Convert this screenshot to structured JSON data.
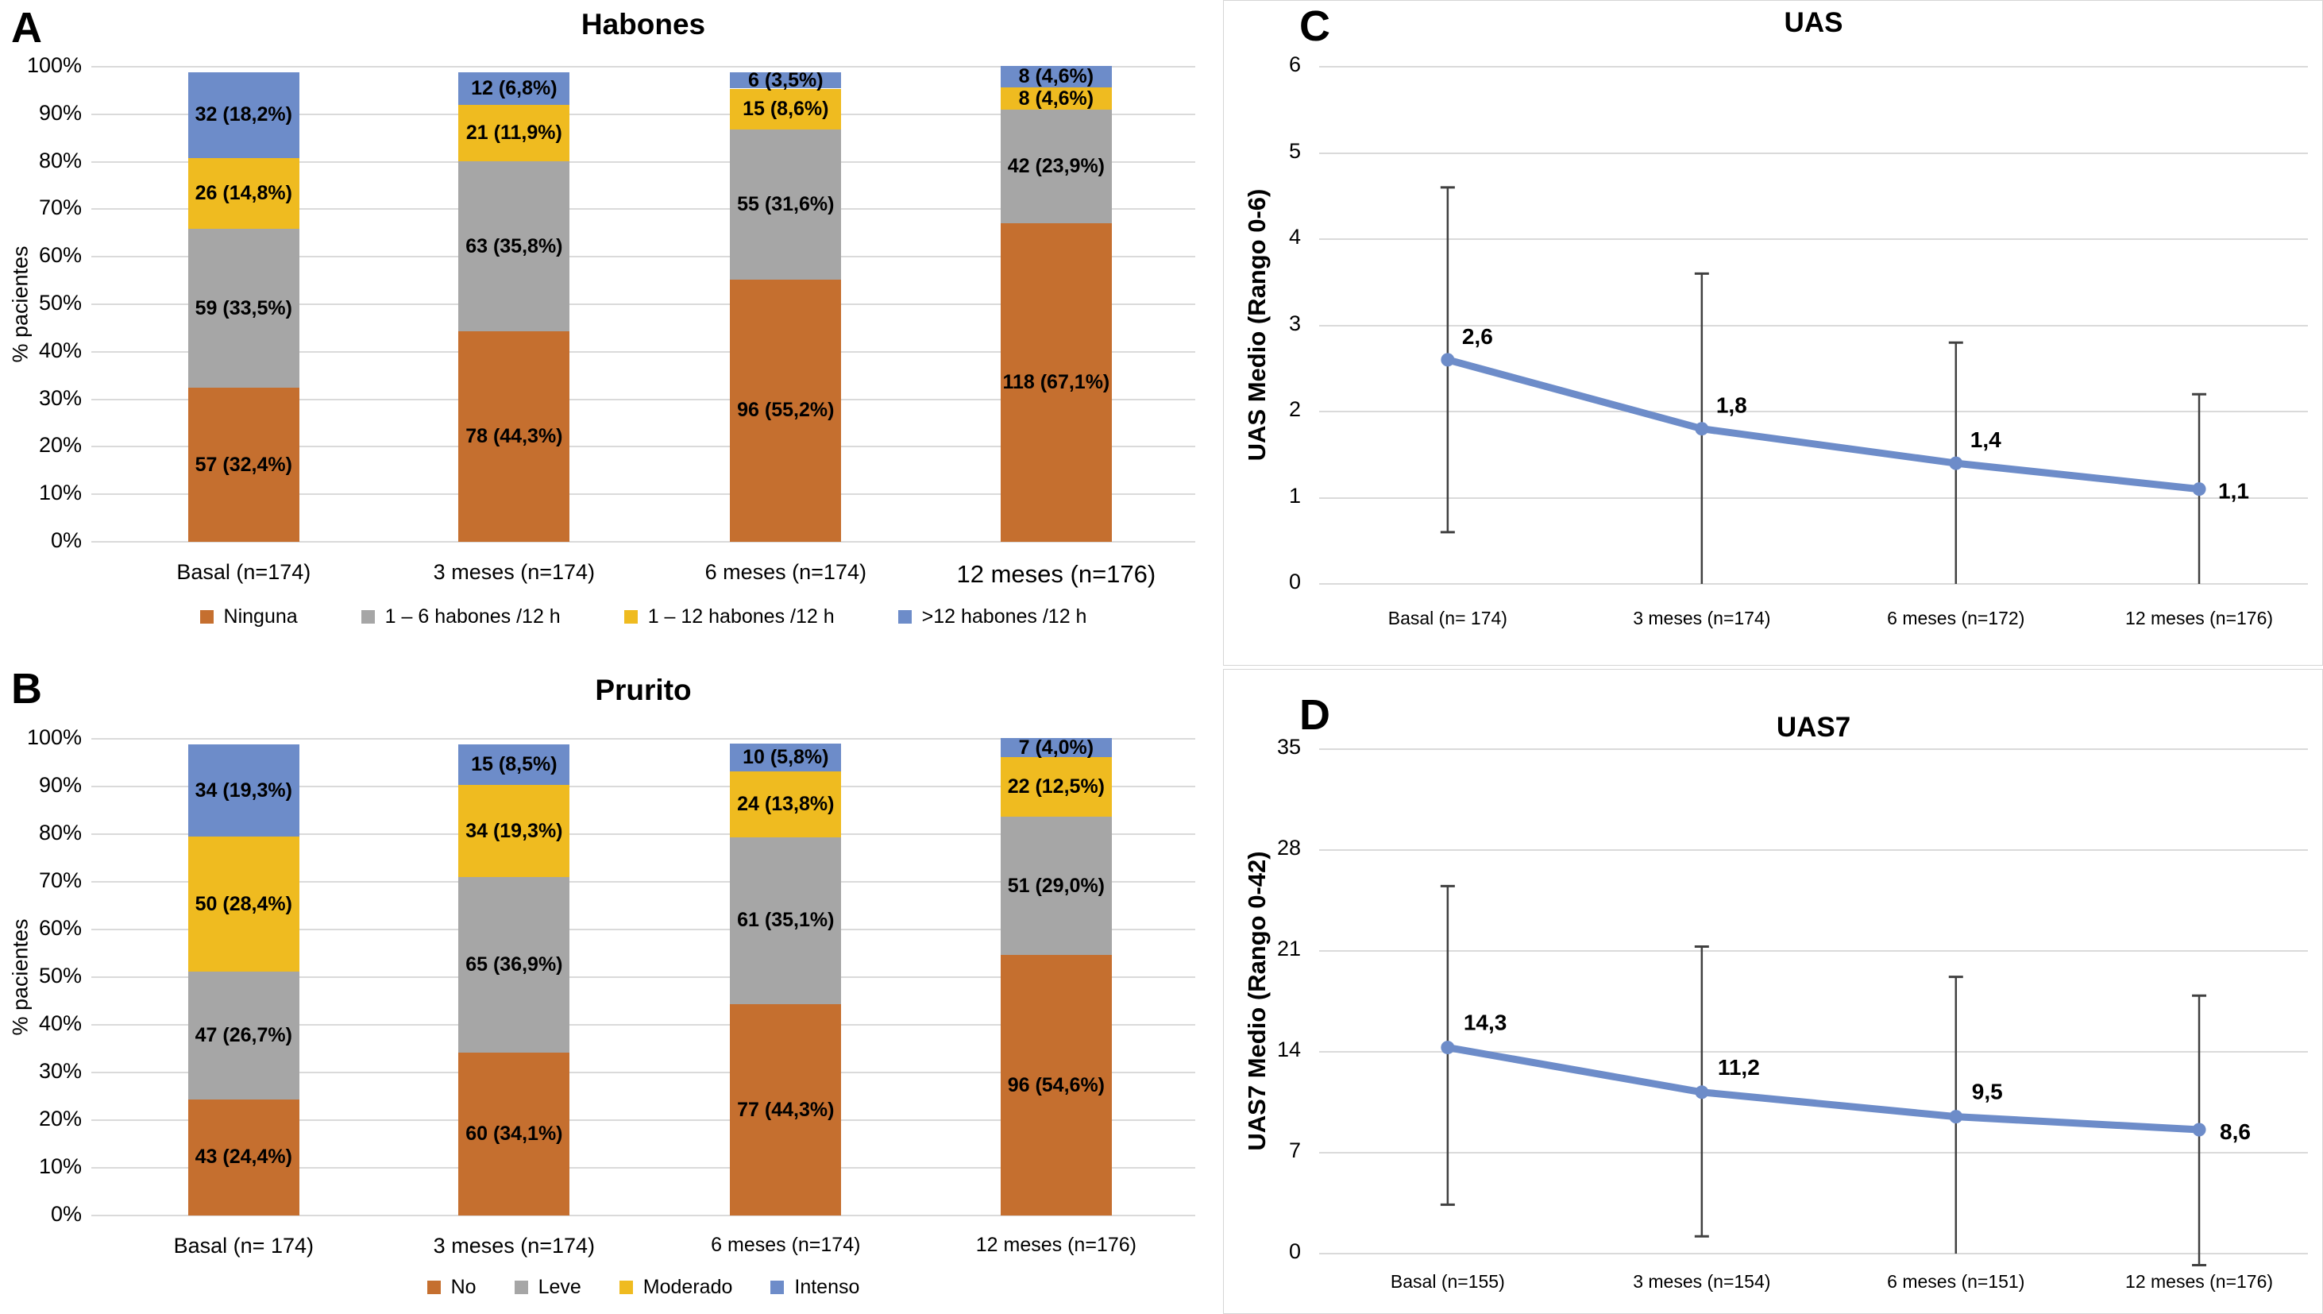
{
  "figure": {
    "panels": [
      "A",
      "B",
      "C",
      "D"
    ]
  },
  "chart_data": [
    {
      "panel": "A",
      "type": "bar",
      "stacked": true,
      "title": "Habones",
      "ylabel": "% pacientes",
      "grid": true,
      "legend_position": "bottom",
      "y_ticks": [
        "0%",
        "10%",
        "20%",
        "30%",
        "40%",
        "50%",
        "60%",
        "70%",
        "80%",
        "90%",
        "100%"
      ],
      "ylim_pct": [
        0,
        100
      ],
      "categories": [
        "Basal (n=174)",
        "3 meses (n=174)",
        "6 meses (n=174)",
        "12 meses (n=176)"
      ],
      "series": [
        {
          "name": "Ninguna",
          "color": "#C56F2F",
          "counts": [
            57,
            78,
            96,
            118
          ],
          "values_pct": [
            32.4,
            44.3,
            55.2,
            67.1
          ],
          "labels": [
            "57 (32,4%)",
            "78 (44,3%)",
            "96 (55,2%)",
            "118 (67,1%)"
          ]
        },
        {
          "name": "1 – 6 habones /12 h",
          "color": "#A6A6A6",
          "counts": [
            59,
            63,
            55,
            42
          ],
          "values_pct": [
            33.5,
            35.8,
            31.6,
            23.9
          ],
          "labels": [
            "59 (33,5%)",
            "63 (35,8%)",
            "55 (31,6%)",
            "42 (23,9%)"
          ]
        },
        {
          "name": "1 – 12 habones /12 h",
          "color": "#EFBB20",
          "counts": [
            26,
            21,
            15,
            8
          ],
          "values_pct": [
            14.8,
            11.9,
            8.6,
            4.6
          ],
          "labels": [
            "26 (14,8%)",
            "21 (11,9%)",
            "15 (8,6%)",
            "8 (4,6%)"
          ]
        },
        {
          "name": ">12 habones /12 h",
          "color": "#6D8CC9",
          "counts": [
            32,
            12,
            6,
            8
          ],
          "values_pct": [
            18.2,
            6.8,
            3.5,
            4.6
          ],
          "labels": [
            "32 (18,2%)",
            "12 (6,8%)",
            "6 (3,5%)",
            "8 (4,6%)"
          ]
        }
      ]
    },
    {
      "panel": "B",
      "type": "bar",
      "stacked": true,
      "title": "Prurito",
      "ylabel": "% pacientes",
      "grid": true,
      "legend_position": "bottom",
      "y_ticks": [
        "0%",
        "10%",
        "20%",
        "30%",
        "40%",
        "50%",
        "60%",
        "70%",
        "80%",
        "90%",
        "100%"
      ],
      "ylim_pct": [
        0,
        100
      ],
      "categories": [
        "Basal (n= 174)",
        "3 meses (n=174)",
        "6 meses (n=174)",
        "12 meses (n=176)"
      ],
      "series": [
        {
          "name": "No",
          "color": "#C56F2F",
          "counts": [
            43,
            60,
            77,
            96
          ],
          "values_pct": [
            24.4,
            34.1,
            44.3,
            54.6
          ],
          "labels": [
            "43 (24,4%)",
            "60 (34,1%)",
            "77 (44,3%)",
            "96 (54,6%)"
          ]
        },
        {
          "name": "Leve",
          "color": "#A6A6A6",
          "counts": [
            47,
            65,
            61,
            51
          ],
          "values_pct": [
            26.7,
            36.9,
            35.1,
            29.0
          ],
          "labels": [
            "47 (26,7%)",
            "65 (36,9%)",
            "61 (35,1%)",
            "51 (29,0%)"
          ]
        },
        {
          "name": "Moderado",
          "color": "#EFBB20",
          "counts": [
            50,
            34,
            24,
            22
          ],
          "values_pct": [
            28.4,
            19.3,
            13.8,
            12.5
          ],
          "labels": [
            "50 (28,4%)",
            "34 (19,3%)",
            "24 (13,8%)",
            "22 (12,5%)"
          ]
        },
        {
          "name": "Intenso",
          "color": "#6D8CC9",
          "counts": [
            34,
            15,
            10,
            7
          ],
          "values_pct": [
            19.3,
            8.5,
            5.8,
            4.0
          ],
          "labels": [
            "34 (19,3%)",
            "15 (8,5%)",
            "10 (5,8%)",
            "7 (4,0%)"
          ]
        }
      ]
    },
    {
      "panel": "C",
      "type": "line",
      "title": "UAS",
      "ylabel": "UAS Medio (Rango 0-6)",
      "grid": true,
      "legend_position": "none",
      "line_color": "#6D8CC9",
      "error_bar_color": "#404040",
      "ylim": [
        0,
        6
      ],
      "y_ticks": [
        0,
        1,
        2,
        3,
        4,
        5,
        6
      ],
      "categories": [
        "Basal (n= 174)",
        "3 meses (n=174)",
        "6 meses (n=172)",
        "12 meses (n=176)"
      ],
      "values": [
        2.6,
        1.8,
        1.4,
        1.1
      ],
      "point_labels": [
        "2,6",
        "1,8",
        "1,4",
        "1,1"
      ],
      "err_high": [
        4.6,
        3.6,
        2.8,
        2.2
      ],
      "err_low": [
        0.6,
        0,
        0,
        0
      ]
    },
    {
      "panel": "D",
      "type": "line",
      "title": "UAS7",
      "ylabel": "UAS7 Medio (Rango 0-42)",
      "grid": true,
      "legend_position": "none",
      "line_color": "#6D8CC9",
      "error_bar_color": "#404040",
      "ylim": [
        0,
        35
      ],
      "y_ticks": [
        0,
        7,
        14,
        21,
        28,
        35
      ],
      "categories": [
        "Basal (n=155)",
        "3 meses (n=154)",
        "6 meses (n=151)",
        "12 meses (n=176)"
      ],
      "values": [
        14.3,
        11.2,
        9.5,
        8.6
      ],
      "point_labels": [
        "14,3",
        "11,2",
        "9,5",
        "8,6"
      ],
      "err_high": [
        25.5,
        21.3,
        19.2,
        17.9
      ],
      "err_low": [
        3.4,
        1.2,
        0,
        -0.8
      ]
    }
  ]
}
